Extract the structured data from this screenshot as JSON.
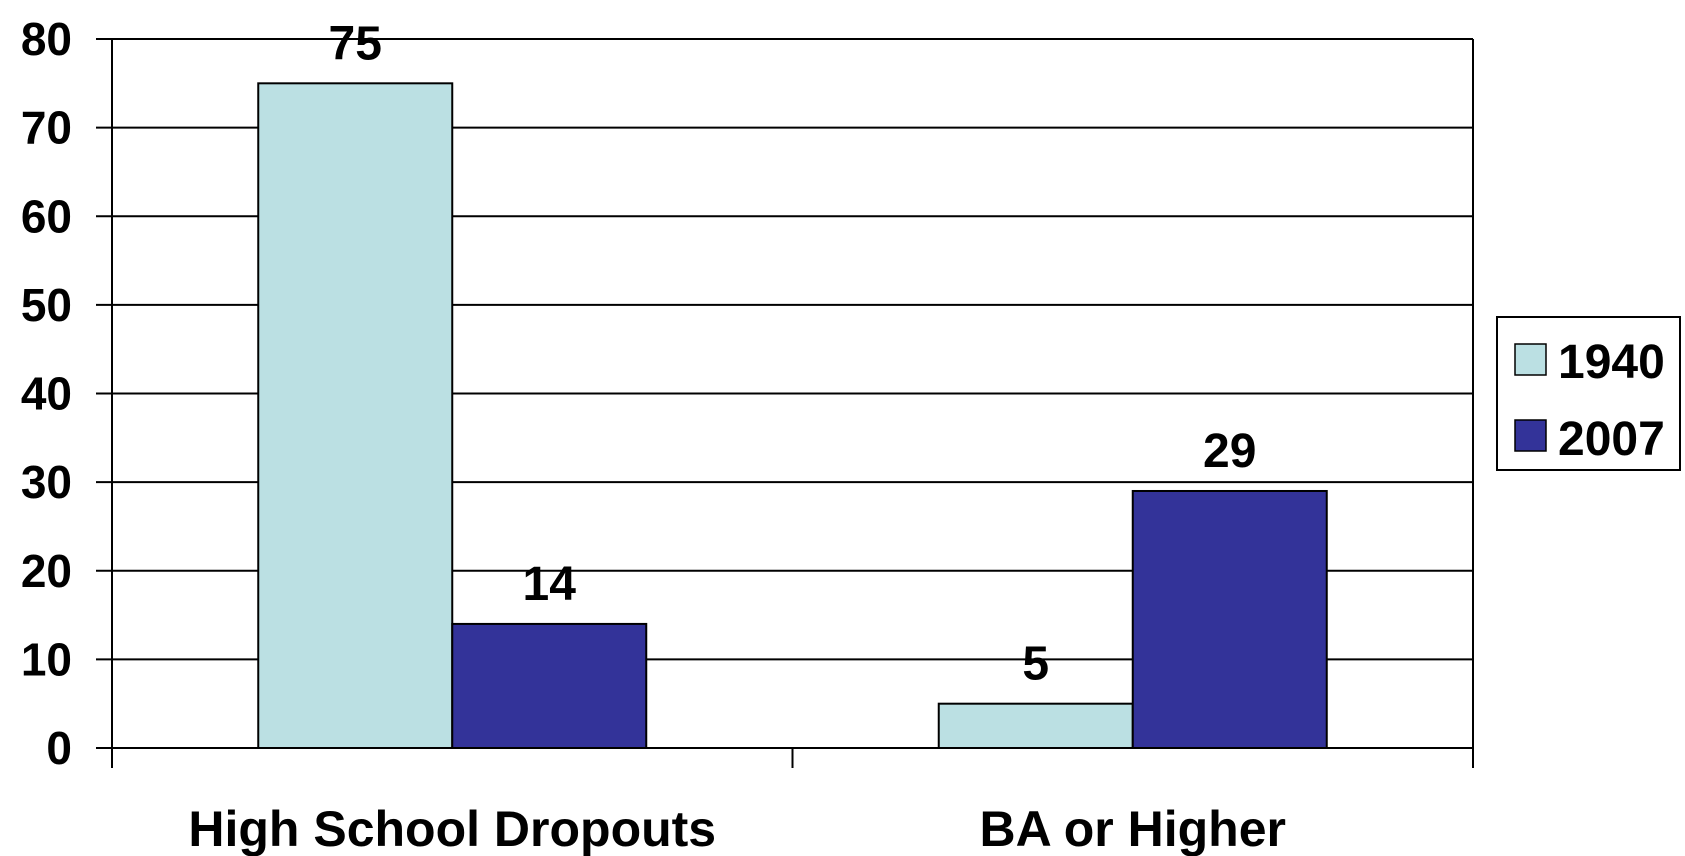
{
  "chart_data": {
    "type": "bar",
    "categories": [
      "High School Dropouts",
      "BA or Higher"
    ],
    "series": [
      {
        "name": "1940",
        "values": [
          75,
          5
        ],
        "color": "#BBE0E3"
      },
      {
        "name": "2007",
        "values": [
          14,
          29
        ],
        "color": "#333399"
      }
    ],
    "ylim": [
      0,
      80
    ],
    "yticks": [
      "0",
      "10",
      "20",
      "30",
      "40",
      "50",
      "60",
      "70",
      "80"
    ],
    "value_labels": [
      [
        "75",
        "5"
      ],
      [
        "14",
        "29"
      ]
    ],
    "grid": true,
    "legend": {
      "position": "right",
      "entries": [
        "1940",
        "2007"
      ]
    },
    "title": "",
    "xlabel": "",
    "ylabel": ""
  }
}
